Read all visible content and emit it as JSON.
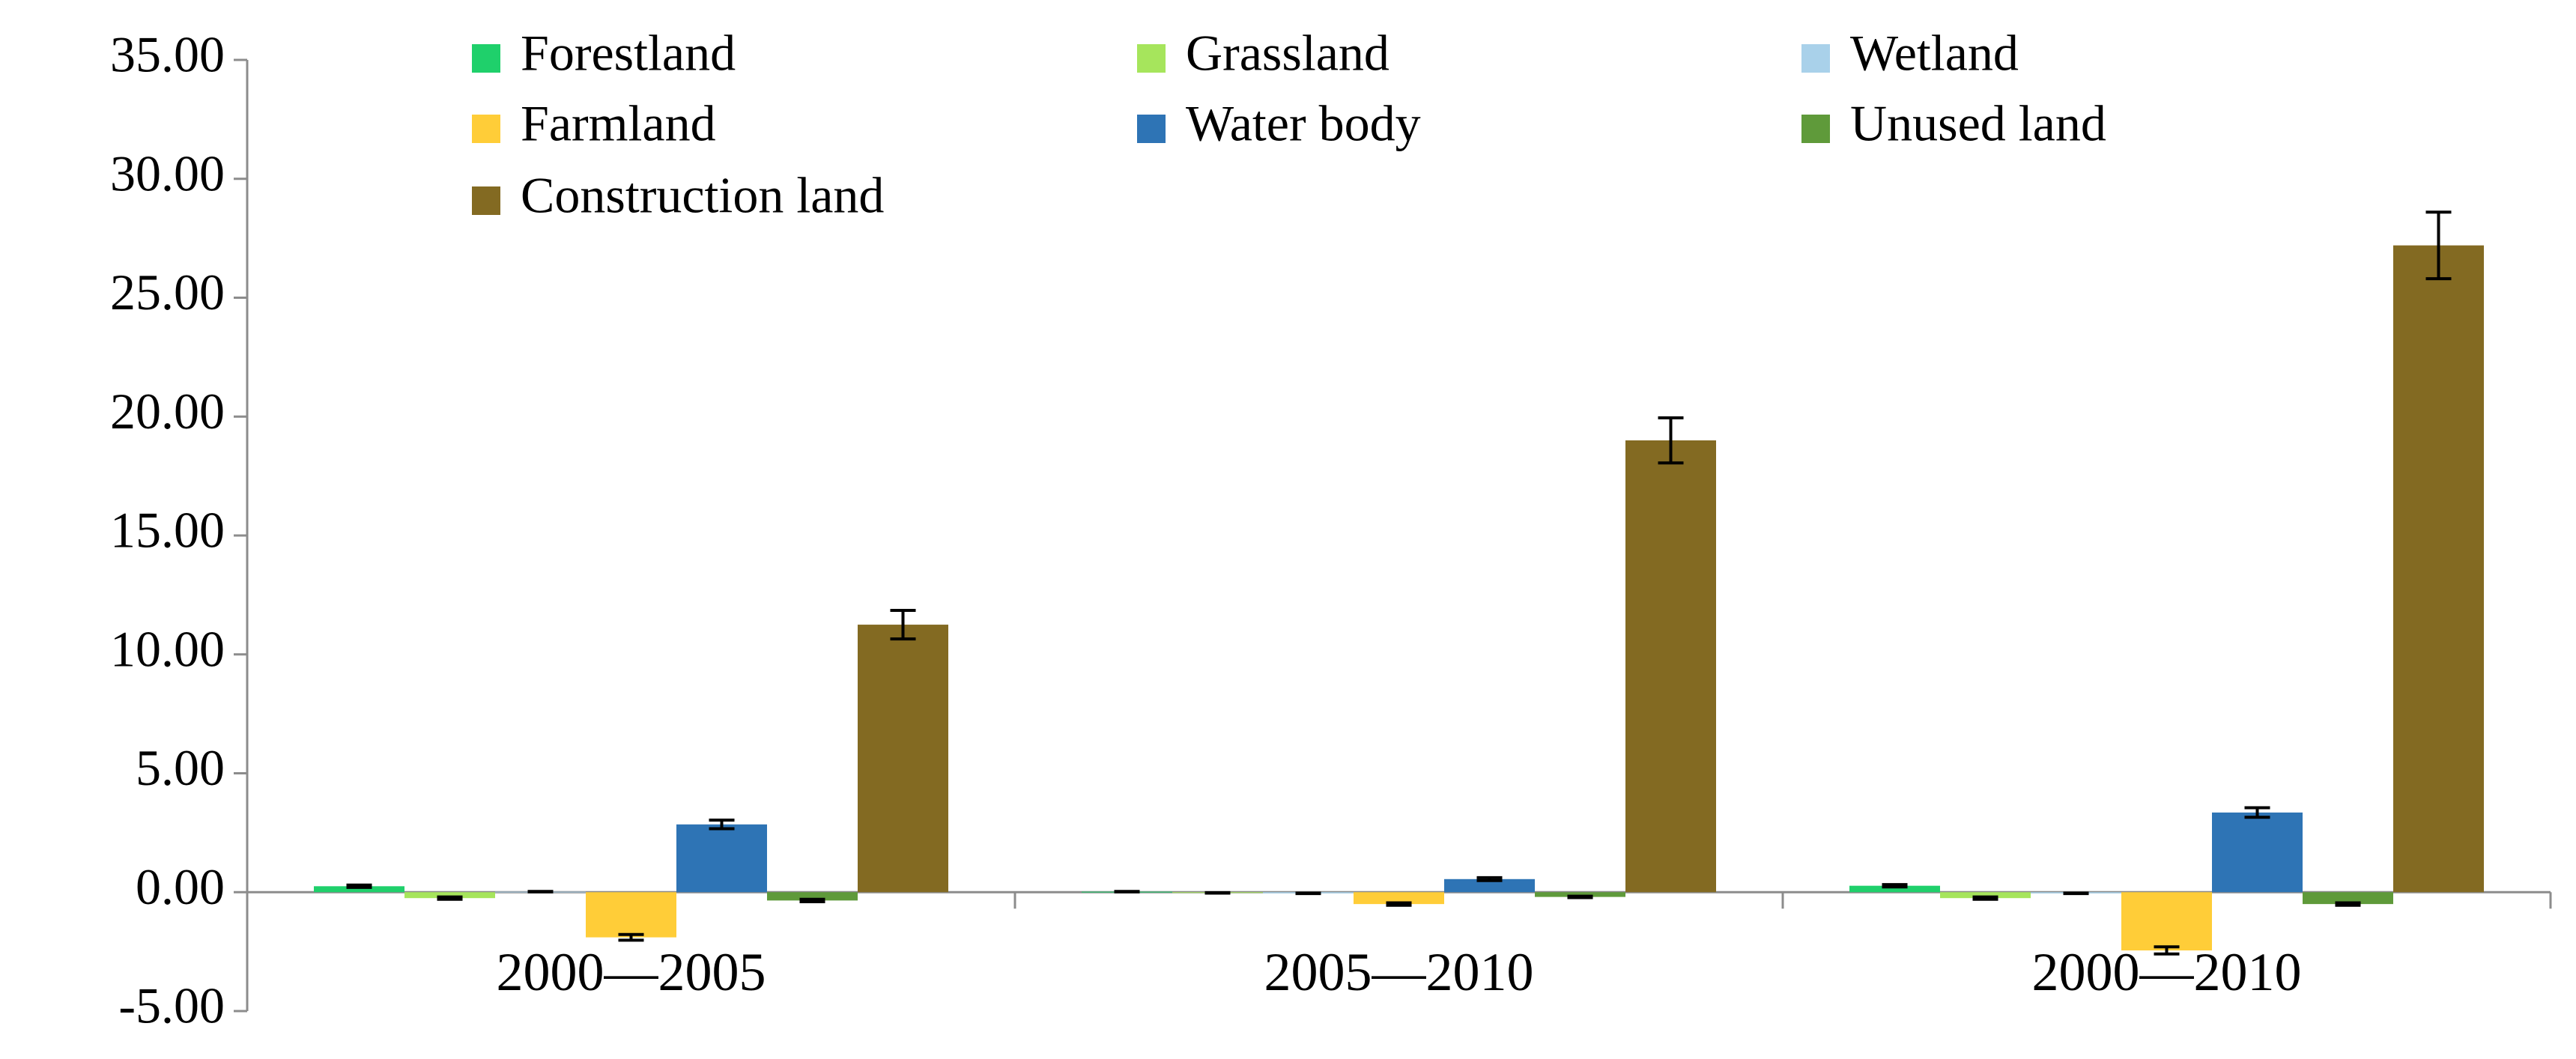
{
  "chart_data": {
    "type": "bar",
    "title": "",
    "xlabel": "",
    "ylabel": "",
    "categories": [
      "2000—2005",
      "2005—2010",
      "2000—2010"
    ],
    "ylim": [
      -5,
      35
    ],
    "yticks": [
      35,
      30,
      25,
      20,
      15,
      10,
      5,
      0,
      -5
    ],
    "ytick_labels": [
      "35.00",
      "30.00",
      "25.00",
      "20.00",
      "15.00",
      "10.00",
      "5.00",
      "0.00",
      "-5.00"
    ],
    "legend_position": "top",
    "series": [
      {
        "name": "Forestland",
        "color": "#1fd06b",
        "values": [
          0.25,
          0.02,
          0.27
        ],
        "errors": [
          0.05,
          0.01,
          0.05
        ]
      },
      {
        "name": "Grassland",
        "color": "#a6e55c",
        "values": [
          -0.25,
          -0.03,
          -0.25
        ],
        "errors": [
          0.05,
          0.01,
          0.05
        ]
      },
      {
        "name": "Wetland",
        "color": "#a9d1ea",
        "values": [
          0.02,
          -0.05,
          -0.05
        ],
        "errors": [
          0.01,
          0.01,
          0.01
        ]
      },
      {
        "name": "Farmland",
        "color": "#ffcd38",
        "values": [
          -1.9,
          -0.5,
          -2.45
        ],
        "errors": [
          0.12,
          0.05,
          0.15
        ]
      },
      {
        "name": "Water body",
        "color": "#2e74b5",
        "values": [
          2.85,
          0.55,
          3.35
        ],
        "errors": [
          0.18,
          0.06,
          0.2
        ]
      },
      {
        "name": "Unused land",
        "color": "#5f9a3a",
        "values": [
          -0.35,
          -0.2,
          -0.5
        ],
        "errors": [
          0.05,
          0.03,
          0.05
        ]
      },
      {
        "name": "Construction land",
        "color": "#836a22",
        "values": [
          11.25,
          19.0,
          27.2
        ],
        "errors": [
          0.6,
          0.95,
          1.4
        ]
      }
    ]
  }
}
